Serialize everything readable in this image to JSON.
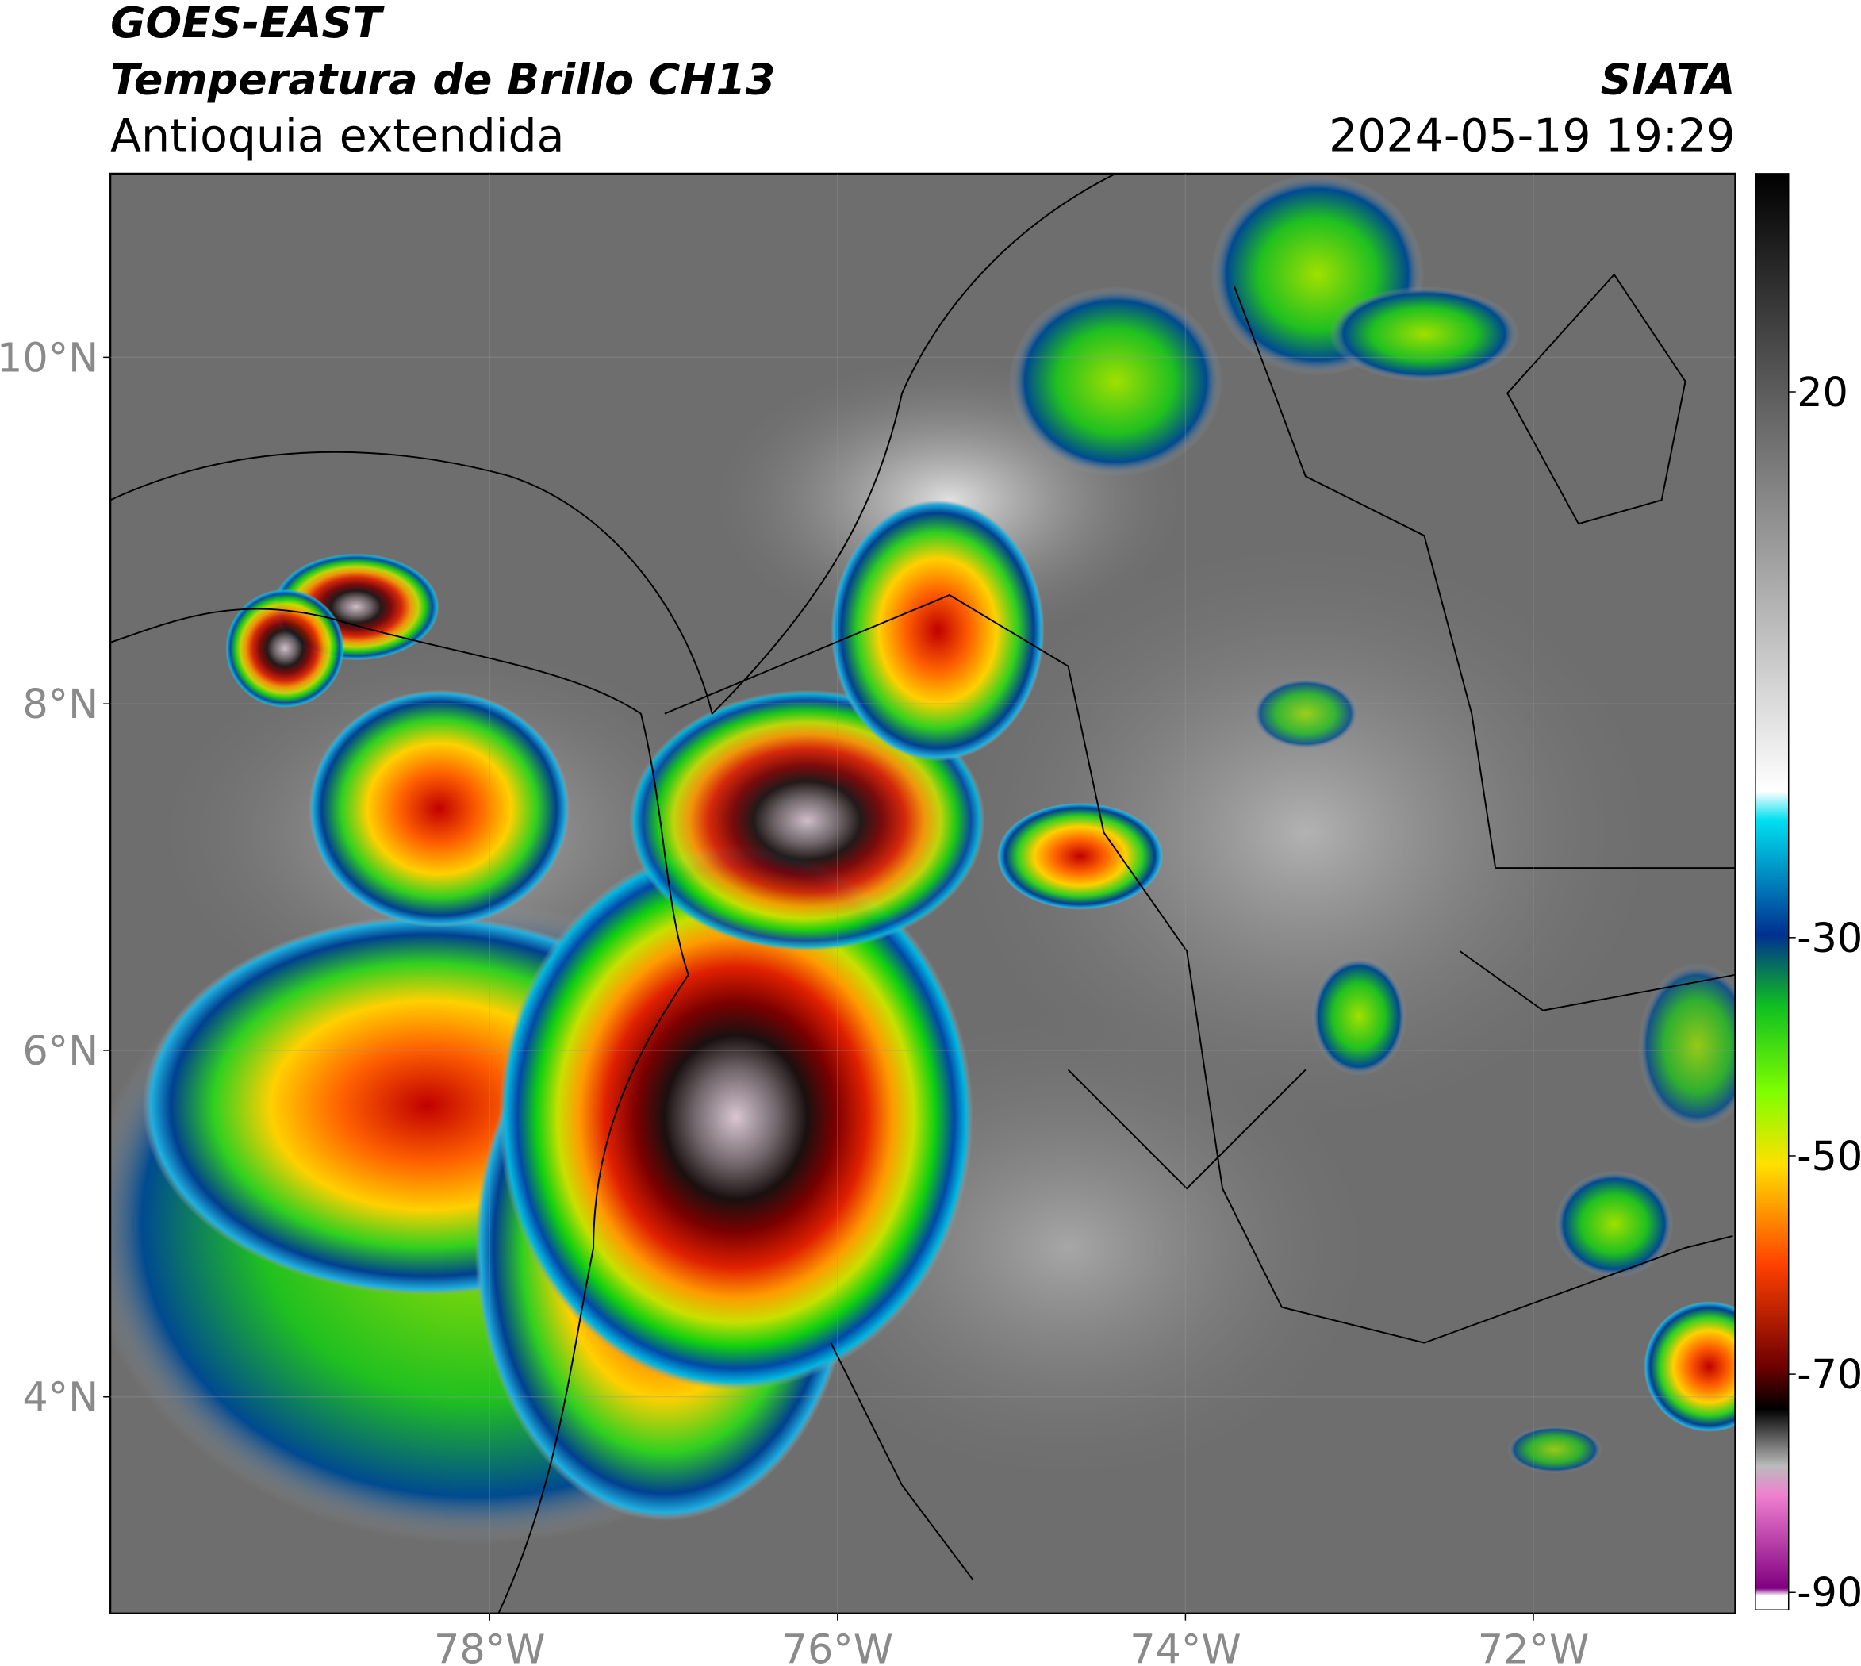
{
  "header": {
    "title": "GOES-EAST",
    "subtitle": "Temperatura de Brillo CH13",
    "region": "Antioquia extendida",
    "source": "SIATA",
    "timestamp": "2024-05-19 19:29"
  },
  "map": {
    "xlim": [
      -80.18,
      -70.84
    ],
    "ylim": [
      2.75,
      11.06
    ],
    "grid": true,
    "xticks": [
      {
        "value": -78,
        "label": "78°W"
      },
      {
        "value": -76,
        "label": "76°W"
      },
      {
        "value": -74,
        "label": "74°W"
      },
      {
        "value": -72,
        "label": "72°W"
      }
    ],
    "yticks": [
      {
        "value": 10,
        "label": "10°N"
      },
      {
        "value": 8,
        "label": "8°N"
      },
      {
        "value": 6,
        "label": "6°N"
      },
      {
        "value": 4,
        "label": "4°N"
      }
    ]
  },
  "colorbar": {
    "lim": [
      -91.6,
      40
    ],
    "ticks": [
      20,
      -30,
      -50,
      -70,
      -90
    ]
  }
}
